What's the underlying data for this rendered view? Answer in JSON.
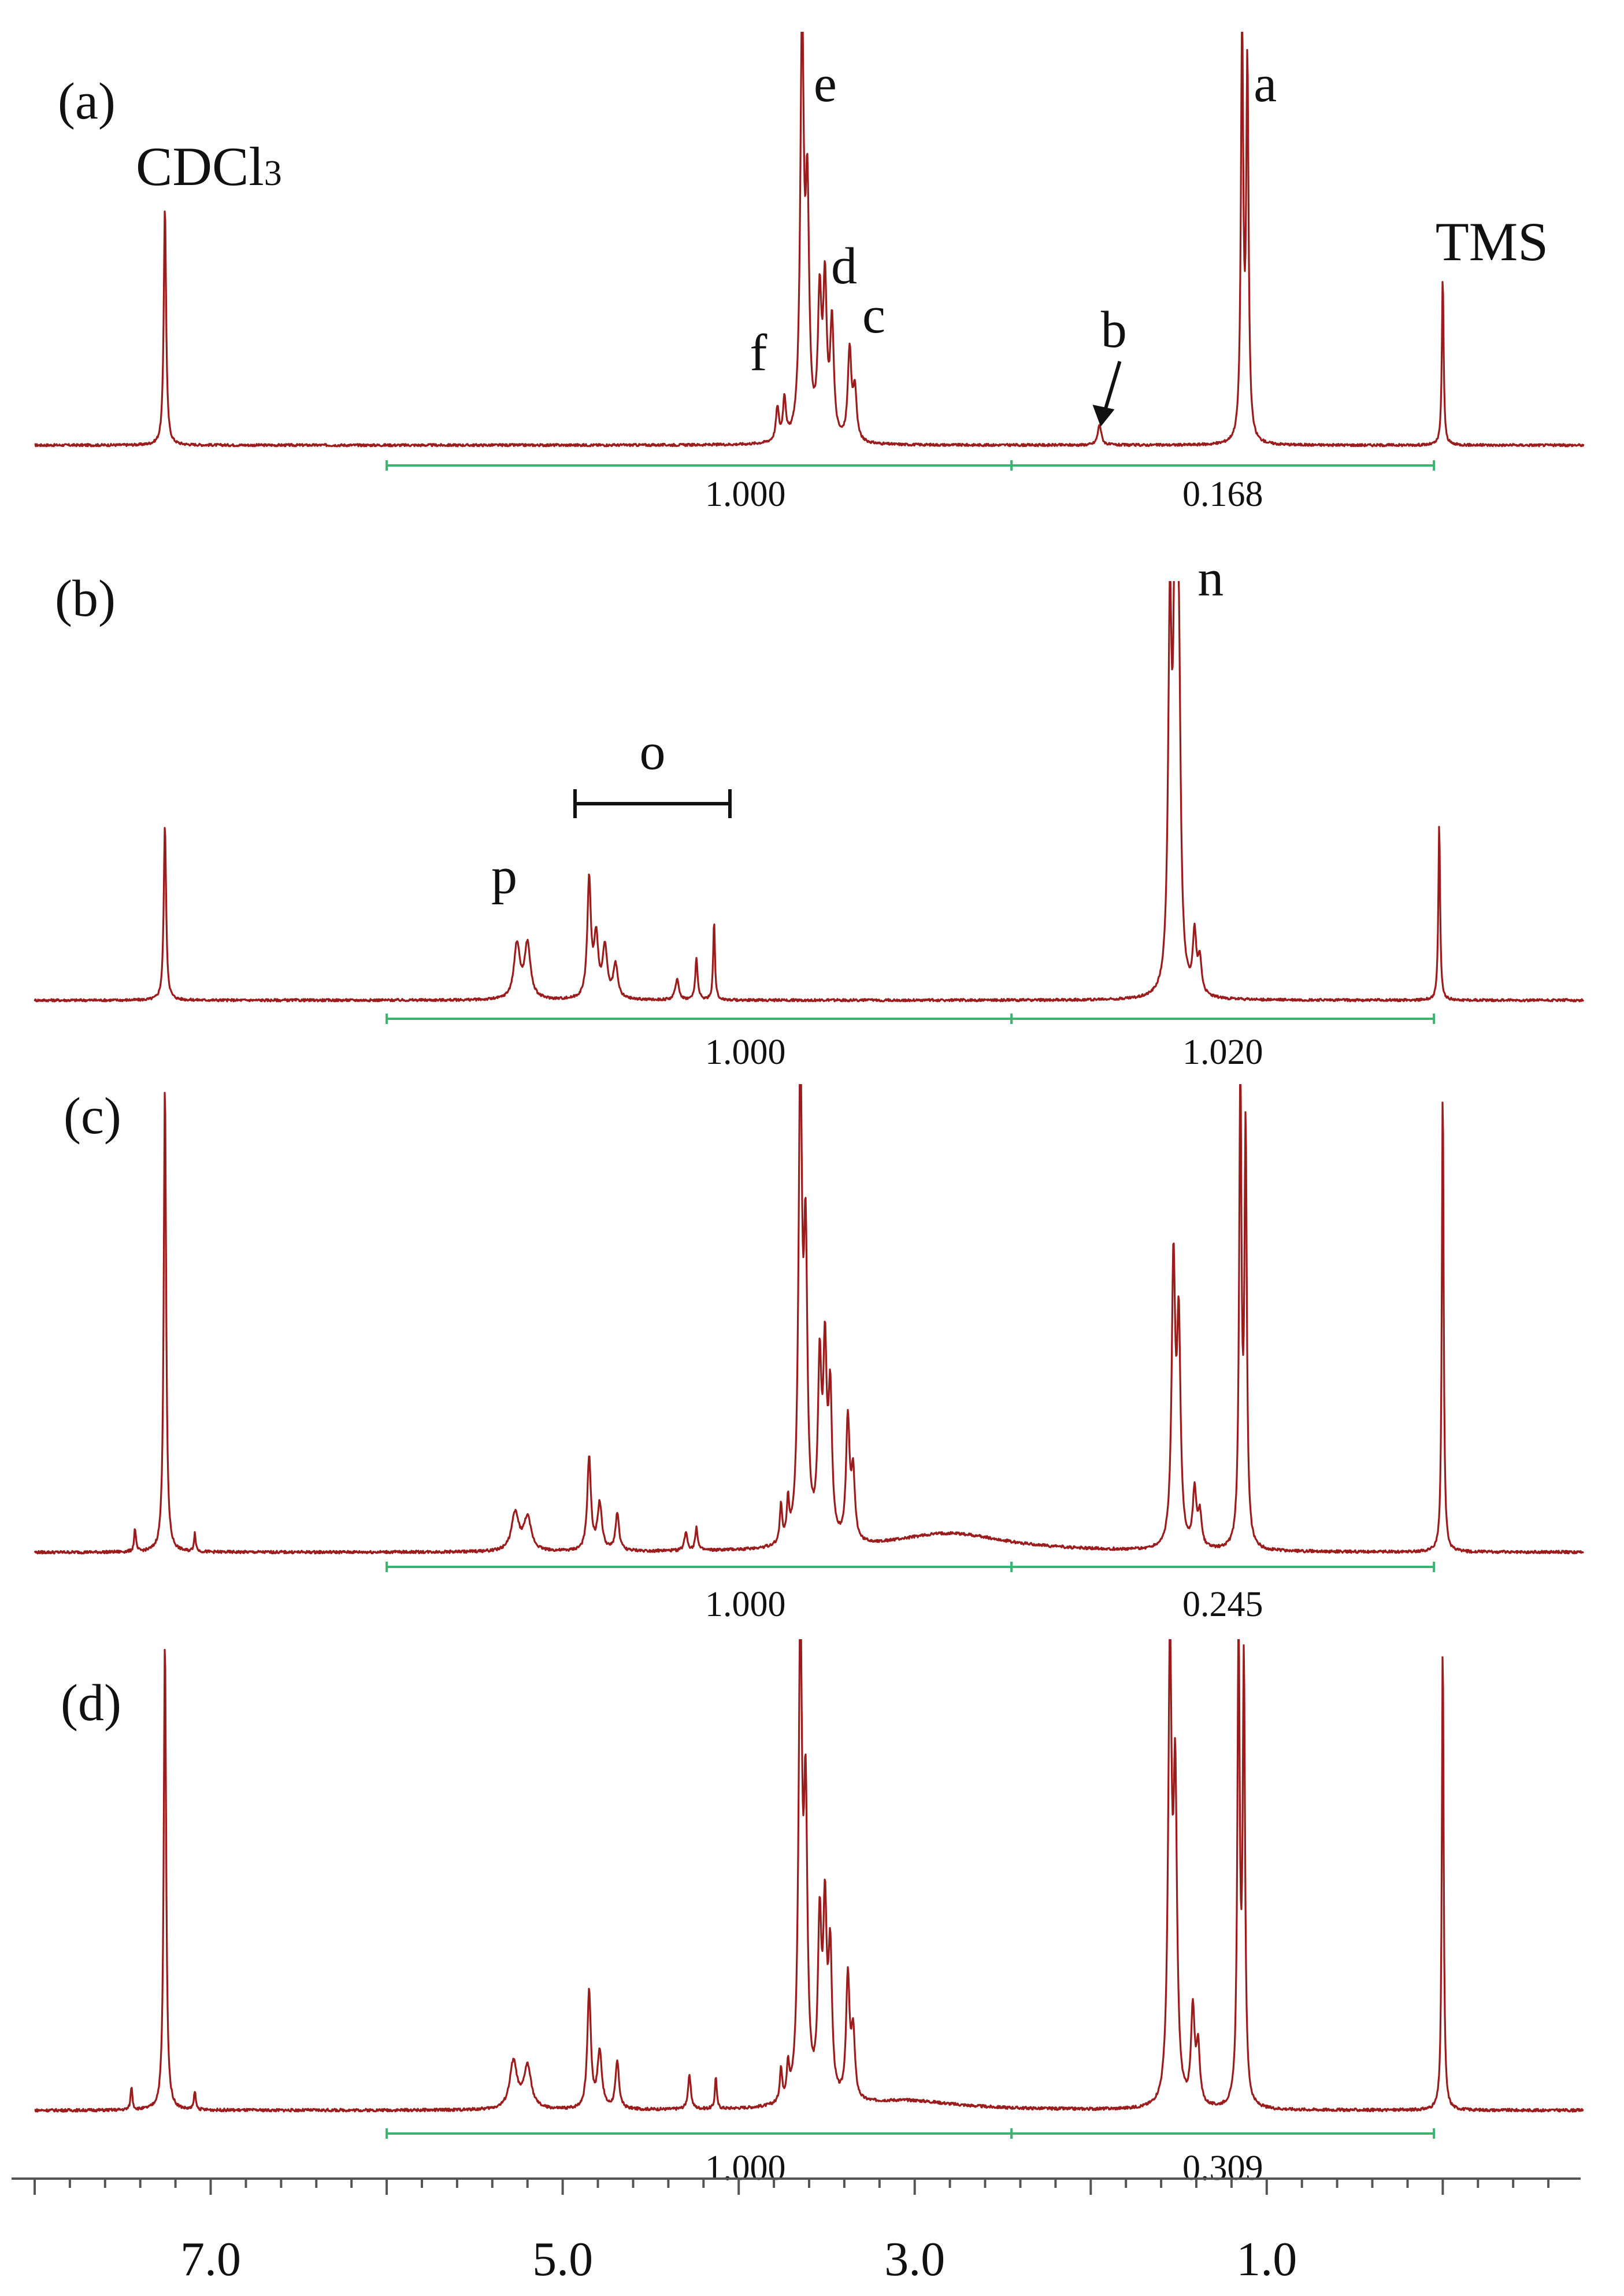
{
  "chart_data": {
    "type": "line",
    "x_axis": {
      "ticks": [
        "7.0",
        "5.0",
        "3.0",
        "1.0"
      ],
      "reversed": true,
      "range": [
        8.0,
        -0.8
      ]
    },
    "panels": [
      {
        "label": "(a)",
        "annotations": [
          {
            "text": "CDCl3",
            "x": 7.26
          },
          {
            "text": "e",
            "x": 3.64
          },
          {
            "text": "d",
            "x": 3.5
          },
          {
            "text": "c",
            "x": 3.38
          },
          {
            "text": "f",
            "x": 3.74
          },
          {
            "text": "b",
            "x": 2.0
          },
          {
            "text": "a",
            "x": 1.14
          },
          {
            "text": "TMS",
            "x": 0.0
          }
        ],
        "peaks": [
          {
            "x": 7.26,
            "h": 0.58,
            "w": 0.008
          },
          {
            "x": 3.78,
            "h": 0.08,
            "w": 0.01
          },
          {
            "x": 3.74,
            "h": 0.1,
            "w": 0.01
          },
          {
            "x": 3.64,
            "h": 1.0,
            "w": 0.012
          },
          {
            "x": 3.61,
            "h": 0.55,
            "w": 0.012
          },
          {
            "x": 3.54,
            "h": 0.33,
            "w": 0.012
          },
          {
            "x": 3.51,
            "h": 0.36,
            "w": 0.012
          },
          {
            "x": 3.47,
            "h": 0.28,
            "w": 0.012
          },
          {
            "x": 3.37,
            "h": 0.22,
            "w": 0.012
          },
          {
            "x": 3.34,
            "h": 0.12,
            "w": 0.012
          },
          {
            "x": 1.95,
            "h": 0.05,
            "w": 0.012
          },
          {
            "x": 1.14,
            "h": 1.0,
            "w": 0.008
          },
          {
            "x": 1.11,
            "h": 0.9,
            "w": 0.008
          },
          {
            "x": 0.0,
            "h": 0.41,
            "w": 0.006
          }
        ],
        "integrals": [
          {
            "from": 6.0,
            "to": 2.45,
            "value": "1.000"
          },
          {
            "from": 2.45,
            "to": 0.05,
            "value": "0.168"
          }
        ]
      },
      {
        "label": "(b)",
        "annotations": [
          {
            "text": "n",
            "x": 1.45
          },
          {
            "text": "p",
            "x": 5.25
          },
          {
            "text": "o",
            "x": 4.49
          }
        ],
        "bracket": {
          "from": 4.93,
          "to": 4.05
        },
        "peaks": [
          {
            "x": 7.26,
            "h": 0.42,
            "w": 0.008
          },
          {
            "x": 5.26,
            "h": 0.13,
            "w": 0.02
          },
          {
            "x": 5.2,
            "h": 0.13,
            "w": 0.02
          },
          {
            "x": 4.85,
            "h": 0.28,
            "w": 0.012
          },
          {
            "x": 4.81,
            "h": 0.14,
            "w": 0.015
          },
          {
            "x": 4.76,
            "h": 0.12,
            "w": 0.015
          },
          {
            "x": 4.7,
            "h": 0.08,
            "w": 0.015
          },
          {
            "x": 4.35,
            "h": 0.05,
            "w": 0.012
          },
          {
            "x": 4.24,
            "h": 0.1,
            "w": 0.008
          },
          {
            "x": 4.14,
            "h": 0.19,
            "w": 0.006
          },
          {
            "x": 1.55,
            "h": 0.85,
            "w": 0.012
          },
          {
            "x": 1.52,
            "h": 0.98,
            "w": 0.012
          },
          {
            "x": 1.5,
            "h": 0.7,
            "w": 0.012
          },
          {
            "x": 1.41,
            "h": 0.14,
            "w": 0.012
          },
          {
            "x": 1.38,
            "h": 0.08,
            "w": 0.012
          },
          {
            "x": 0.02,
            "h": 0.42,
            "w": 0.006
          }
        ],
        "integrals": [
          {
            "from": 6.0,
            "to": 2.45,
            "value": "1.000"
          },
          {
            "from": 2.45,
            "to": 0.05,
            "value": "1.020"
          }
        ]
      },
      {
        "label": "(c)",
        "annotations": [],
        "peaks": [
          {
            "x": 7.26,
            "h": 1.0,
            "w": 0.008
          },
          {
            "x": 7.43,
            "h": 0.05,
            "w": 0.006
          },
          {
            "x": 7.09,
            "h": 0.04,
            "w": 0.006
          },
          {
            "x": 5.27,
            "h": 0.08,
            "w": 0.025
          },
          {
            "x": 5.2,
            "h": 0.07,
            "w": 0.025
          },
          {
            "x": 4.85,
            "h": 0.2,
            "w": 0.012
          },
          {
            "x": 4.79,
            "h": 0.1,
            "w": 0.015
          },
          {
            "x": 4.69,
            "h": 0.08,
            "w": 0.012
          },
          {
            "x": 4.3,
            "h": 0.04,
            "w": 0.01
          },
          {
            "x": 4.24,
            "h": 0.05,
            "w": 0.008
          },
          {
            "x": 3.76,
            "h": 0.08,
            "w": 0.008
          },
          {
            "x": 3.72,
            "h": 0.08,
            "w": 0.008
          },
          {
            "x": 3.65,
            "h": 1.0,
            "w": 0.012
          },
          {
            "x": 3.62,
            "h": 0.6,
            "w": 0.012
          },
          {
            "x": 3.54,
            "h": 0.36,
            "w": 0.012
          },
          {
            "x": 3.51,
            "h": 0.38,
            "w": 0.012
          },
          {
            "x": 3.48,
            "h": 0.3,
            "w": 0.012
          },
          {
            "x": 3.38,
            "h": 0.26,
            "w": 0.012
          },
          {
            "x": 3.35,
            "h": 0.14,
            "w": 0.012
          },
          {
            "x": 2.8,
            "h": 0.04,
            "w": 0.4
          },
          {
            "x": 1.53,
            "h": 0.6,
            "w": 0.012
          },
          {
            "x": 1.5,
            "h": 0.46,
            "w": 0.012
          },
          {
            "x": 1.41,
            "h": 0.12,
            "w": 0.012
          },
          {
            "x": 1.38,
            "h": 0.07,
            "w": 0.012
          },
          {
            "x": 1.15,
            "h": 1.0,
            "w": 0.008
          },
          {
            "x": 1.12,
            "h": 0.88,
            "w": 0.008
          },
          {
            "x": 0.0,
            "h": 1.0,
            "w": 0.006
          }
        ],
        "integrals": [
          {
            "from": 6.0,
            "to": 2.45,
            "value": "1.000"
          },
          {
            "from": 2.45,
            "to": 0.05,
            "value": "0.245"
          }
        ]
      },
      {
        "label": "(d)",
        "annotations": [],
        "peaks": [
          {
            "x": 7.26,
            "h": 1.0,
            "w": 0.008
          },
          {
            "x": 7.45,
            "h": 0.05,
            "w": 0.006
          },
          {
            "x": 7.09,
            "h": 0.04,
            "w": 0.006
          },
          {
            "x": 5.28,
            "h": 0.1,
            "w": 0.025
          },
          {
            "x": 5.2,
            "h": 0.09,
            "w": 0.025
          },
          {
            "x": 4.85,
            "h": 0.25,
            "w": 0.012
          },
          {
            "x": 4.79,
            "h": 0.12,
            "w": 0.015
          },
          {
            "x": 4.69,
            "h": 0.1,
            "w": 0.012
          },
          {
            "x": 4.28,
            "h": 0.07,
            "w": 0.01
          },
          {
            "x": 4.13,
            "h": 0.07,
            "w": 0.006
          },
          {
            "x": 3.76,
            "h": 0.07,
            "w": 0.008
          },
          {
            "x": 3.72,
            "h": 0.07,
            "w": 0.008
          },
          {
            "x": 3.65,
            "h": 1.0,
            "w": 0.012
          },
          {
            "x": 3.62,
            "h": 0.6,
            "w": 0.012
          },
          {
            "x": 3.54,
            "h": 0.36,
            "w": 0.012
          },
          {
            "x": 3.51,
            "h": 0.38,
            "w": 0.012
          },
          {
            "x": 3.48,
            "h": 0.3,
            "w": 0.012
          },
          {
            "x": 3.38,
            "h": 0.26,
            "w": 0.012
          },
          {
            "x": 3.35,
            "h": 0.14,
            "w": 0.012
          },
          {
            "x": 3.05,
            "h": 0.02,
            "w": 0.35
          },
          {
            "x": 1.55,
            "h": 0.95,
            "w": 0.012
          },
          {
            "x": 1.52,
            "h": 0.65,
            "w": 0.012
          },
          {
            "x": 1.42,
            "h": 0.2,
            "w": 0.012
          },
          {
            "x": 1.39,
            "h": 0.12,
            "w": 0.012
          },
          {
            "x": 1.16,
            "h": 1.0,
            "w": 0.008
          },
          {
            "x": 1.13,
            "h": 0.92,
            "w": 0.008
          },
          {
            "x": 0.0,
            "h": 1.0,
            "w": 0.006
          }
        ],
        "integrals": [
          {
            "from": 6.0,
            "to": 2.45,
            "value": "1.000"
          },
          {
            "from": 2.45,
            "to": 0.05,
            "value": "0.309"
          }
        ]
      }
    ]
  }
}
